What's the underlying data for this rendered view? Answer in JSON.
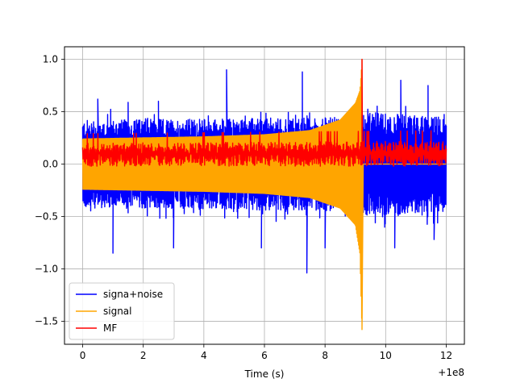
{
  "chart_data": {
    "type": "line",
    "title": "",
    "xlabel": "Time (s)",
    "ylabel": "",
    "x_offset_label": "+1e8",
    "xlim": [
      -0.6,
      12.6
    ],
    "ylim": [
      -1.72,
      1.12
    ],
    "x_ticks": [
      0,
      2,
      4,
      6,
      8,
      10,
      12
    ],
    "x_tick_labels": [
      "0",
      "2",
      "4",
      "6",
      "8",
      "10",
      "12"
    ],
    "y_ticks": [
      1.0,
      0.5,
      0.0,
      -0.5,
      -1.0,
      -1.5
    ],
    "y_tick_labels": [
      "1.0",
      "0.5",
      "0.0",
      "−0.5",
      "−1.0",
      "−1.5"
    ],
    "grid": true,
    "legend_position": "lower-left",
    "x_range": [
      0,
      12
    ],
    "merger_time": 9.22,
    "series": [
      {
        "name": "signa+noise",
        "color": "#0000ff",
        "envelope": {
          "x": [
            0,
            9.22,
            9.22,
            12
          ],
          "upper": [
            0.42,
            0.45,
            0.5,
            0.45
          ],
          "lower": [
            -0.42,
            -0.45,
            -0.5,
            -0.45
          ]
        },
        "spikes": [
          {
            "x": 0.5,
            "y": 0.62
          },
          {
            "x": 1.5,
            "y": 0.59
          },
          {
            "x": 2.5,
            "y": 0.6
          },
          {
            "x": 4.75,
            "y": 0.9
          },
          {
            "x": 7.25,
            "y": 0.88
          },
          {
            "x": 10.5,
            "y": 0.8
          },
          {
            "x": 11.4,
            "y": 0.75
          },
          {
            "x": 1.0,
            "y": -0.75
          },
          {
            "x": 1.0,
            "y": -0.85
          },
          {
            "x": 3.0,
            "y": -0.8
          },
          {
            "x": 5.9,
            "y": -0.8
          },
          {
            "x": 7.4,
            "y": -1.04
          },
          {
            "x": 8.0,
            "y": -0.8
          },
          {
            "x": 10.3,
            "y": -0.8
          },
          {
            "x": 11.6,
            "y": -0.72
          }
        ]
      },
      {
        "name": "signal",
        "color": "#ffa500",
        "envelope": {
          "x": [
            0,
            2,
            4,
            6,
            7.5,
            8.5,
            9.0,
            9.15,
            9.22
          ],
          "upper": [
            0.24,
            0.25,
            0.26,
            0.28,
            0.32,
            0.42,
            0.58,
            0.7,
            0.98
          ],
          "lower": [
            -0.24,
            -0.25,
            -0.26,
            -0.28,
            -0.32,
            -0.42,
            -0.58,
            -0.85,
            -1.58
          ]
        },
        "peak": {
          "x": 9.22,
          "y_max": 1.0,
          "y_min": -1.58
        }
      },
      {
        "name": "MF",
        "color": "#ff0000",
        "envelope": {
          "x": [
            0,
            12
          ],
          "upper": [
            0.2,
            0.22
          ],
          "lower": [
            -0.02,
            -0.02
          ]
        },
        "peak": {
          "x": 9.22,
          "y_max": 1.0,
          "y_min": 0.0
        }
      }
    ]
  }
}
